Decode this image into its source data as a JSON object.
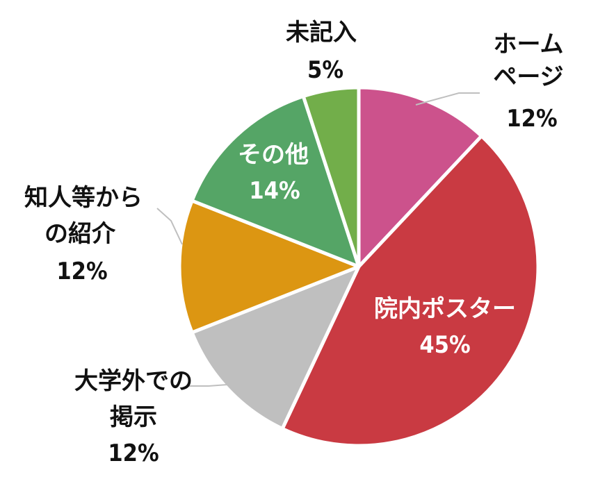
{
  "chart_data": {
    "type": "pie",
    "slices": [
      {
        "label_lines": [
          "ホーム",
          "ページ"
        ],
        "percent_label": "12%",
        "value": 12,
        "color": "#cc528c"
      },
      {
        "label_lines": [
          "院内ポスター"
        ],
        "percent_label": "45%",
        "value": 45,
        "color": "#c93a42"
      },
      {
        "label_lines": [
          "大学外での",
          "掲示"
        ],
        "percent_label": "12%",
        "value": 12,
        "color": "#bfbfbf"
      },
      {
        "label_lines": [
          "知人等から",
          "の紹介"
        ],
        "percent_label": "12%",
        "value": 12,
        "color": "#dc9612"
      },
      {
        "label_lines": [
          "その他"
        ],
        "percent_label": "14%",
        "value": 14,
        "color": "#55a566"
      },
      {
        "label_lines": [
          "未記入"
        ],
        "percent_label": "5%",
        "value": 5,
        "color": "#72ae4a"
      }
    ],
    "legend": "none"
  }
}
